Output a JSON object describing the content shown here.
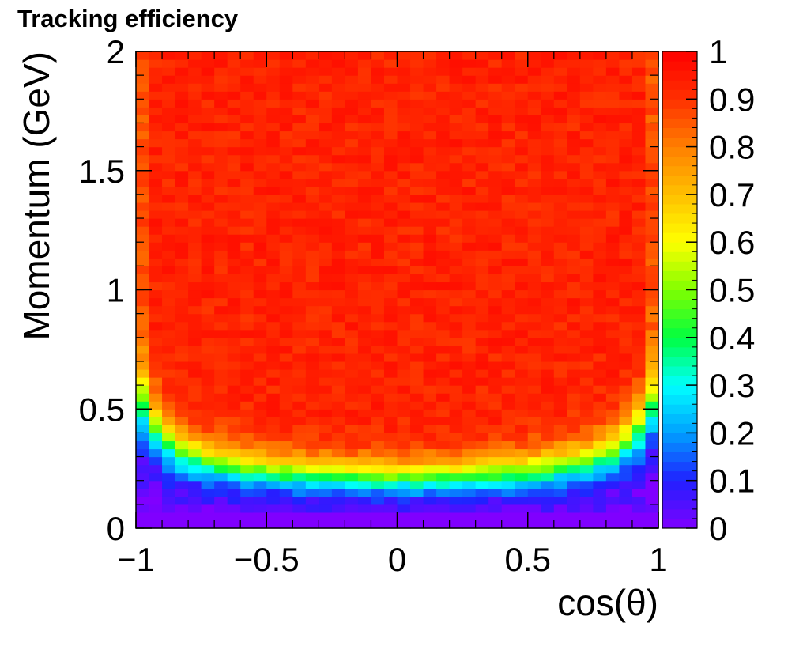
{
  "chart_data": {
    "type": "heatmap",
    "title": "Tracking efficiency",
    "xlabel": "cos(θ)",
    "ylabel": "Momentum (GeV)",
    "xlim": [
      -1,
      1
    ],
    "ylim": [
      0,
      2
    ],
    "x_ticks": [
      {
        "value": -1,
        "label": "−1"
      },
      {
        "value": -0.5,
        "label": "−0.5"
      },
      {
        "value": 0,
        "label": "0"
      },
      {
        "value": 0.5,
        "label": "0.5"
      },
      {
        "value": 1,
        "label": "1"
      }
    ],
    "y_ticks": [
      {
        "value": 0,
        "label": "0"
      },
      {
        "value": 0.5,
        "label": "0.5"
      },
      {
        "value": 1,
        "label": "1"
      },
      {
        "value": 1.5,
        "label": "1.5"
      },
      {
        "value": 2,
        "label": "2"
      }
    ],
    "colorbar": {
      "range": [
        0,
        1
      ],
      "ticks": [
        {
          "value": 0,
          "label": "0"
        },
        {
          "value": 0.1,
          "label": "0.1"
        },
        {
          "value": 0.2,
          "label": "0.2"
        },
        {
          "value": 0.3,
          "label": "0.3"
        },
        {
          "value": 0.4,
          "label": "0.4"
        },
        {
          "value": 0.5,
          "label": "0.5"
        },
        {
          "value": 0.6,
          "label": "0.6"
        },
        {
          "value": 0.7,
          "label": "0.7"
        },
        {
          "value": 0.8,
          "label": "0.8"
        },
        {
          "value": 0.9,
          "label": "0.9"
        },
        {
          "value": 1,
          "label": "1"
        }
      ],
      "palette": [
        "#8000ff",
        "#2020ff",
        "#00a0ff",
        "#00ffff",
        "#00ff40",
        "#80ff00",
        "#ffff00",
        "#ffc000",
        "#ff8000",
        "#ff3000",
        "#ff0000"
      ]
    },
    "x_bins": [
      -0.975,
      -0.925,
      -0.875,
      -0.825,
      -0.775,
      -0.725,
      -0.675,
      -0.625,
      -0.575,
      -0.525,
      -0.475,
      -0.425,
      -0.375,
      -0.325,
      -0.275,
      -0.225,
      -0.175,
      -0.125,
      -0.075,
      -0.025,
      0.025,
      0.075,
      0.125,
      0.175,
      0.225,
      0.275,
      0.325,
      0.375,
      0.425,
      0.475,
      0.525,
      0.575,
      0.625,
      0.675,
      0.725,
      0.775,
      0.825,
      0.875,
      0.925,
      0.975
    ],
    "turn_on_momentum_gev": [
      0.52,
      0.42,
      0.36,
      0.32,
      0.3,
      0.28,
      0.27,
      0.26,
      0.25,
      0.245,
      0.24,
      0.235,
      0.23,
      0.225,
      0.225,
      0.22,
      0.22,
      0.22,
      0.215,
      0.215,
      0.215,
      0.215,
      0.22,
      0.22,
      0.22,
      0.225,
      0.225,
      0.23,
      0.235,
      0.24,
      0.245,
      0.25,
      0.26,
      0.27,
      0.28,
      0.3,
      0.32,
      0.36,
      0.42,
      0.52
    ],
    "plateau_efficiency": 0.93,
    "edge_plateau_efficiency": 0.86
  }
}
